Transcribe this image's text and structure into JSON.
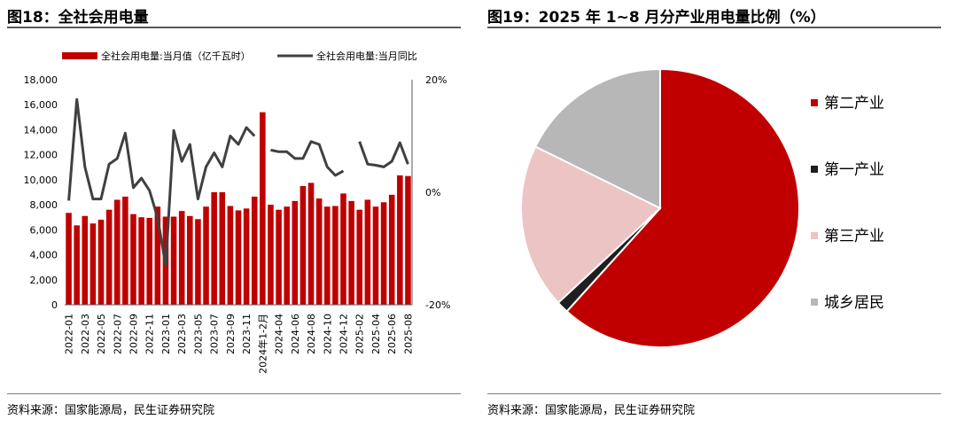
{
  "figures": {
    "left_title": "图18：全社会用电量",
    "right_title": "图19：2025 年 1~8 月分产业用电量比例（%）",
    "left_source": "资料来源：国家能源局，民生证券研究院",
    "right_source": "资料来源：国家能源局，民生证券研究院"
  },
  "chart_data": [
    {
      "type": "bar+line",
      "title": "全社会用电量",
      "colors": {
        "bar": "#c00000",
        "line": "#404040"
      },
      "legend": {
        "placement": "top",
        "bar_label": "全社会用电量:当月值（亿千瓦时）",
        "line_label": "全社会用电量:当月同比"
      },
      "y_left": {
        "ylim": [
          0,
          18000
        ],
        "ticks": [
          "0",
          "2,000",
          "4,000",
          "6,000",
          "8,000",
          "10,000",
          "12,000",
          "14,000",
          "16,000",
          "18,000"
        ]
      },
      "y_right": {
        "ylim": [
          -20,
          20
        ],
        "ticks": [
          "-20%",
          "0%",
          "20%"
        ]
      },
      "x_tick_labels": [
        "2022-01",
        "2022-03",
        "2022-05",
        "2022-07",
        "2022-09",
        "2022-11",
        "2023-01",
        "2023-03",
        "2023-05",
        "2023-07",
        "2023-09",
        "2023-11",
        "2024年1-2月",
        "2024-04",
        "2024-06",
        "2024-08",
        "2024-10",
        "2024-12",
        "2025-02",
        "2025-04",
        "2025-06",
        "2025-08"
      ],
      "series": [
        {
          "name": "全社会用电量:当月值（亿千瓦时）",
          "kind": "bar",
          "values": [
            7350,
            6350,
            7100,
            6500,
            6800,
            7600,
            8400,
            8650,
            7250,
            7000,
            6950,
            7850,
            7050,
            7050,
            7500,
            7100,
            6850,
            7850,
            9000,
            9000,
            7900,
            7550,
            7700,
            8650,
            15400,
            8000,
            7600,
            7850,
            8300,
            9500,
            9750,
            8500,
            7850,
            7900,
            8900,
            8300,
            7600,
            8400,
            7850,
            8200,
            8800,
            10350,
            10300
          ]
        },
        {
          "name": "全社会用电量:当月同比",
          "kind": "line",
          "values": [
            -1.5,
            16.5,
            4.5,
            -1.2,
            -1.2,
            5.0,
            6.0,
            10.5,
            0.8,
            2.5,
            0.3,
            -4.5,
            -13.0,
            11.0,
            5.5,
            8.5,
            -1.2,
            4.5,
            7.0,
            4.5,
            10.0,
            8.5,
            11.5,
            10.0,
            null,
            7.5,
            7.2,
            7.2,
            6.0,
            6.0,
            9.0,
            8.5,
            4.5,
            3.0,
            3.8,
            null,
            9.0,
            5.0,
            4.8,
            4.5,
            5.5,
            8.8,
            5.0
          ]
        }
      ]
    },
    {
      "type": "pie",
      "title": "2025 年 1~8 月分产业用电量比例（%）",
      "legend": {
        "placement": "right"
      },
      "slices": [
        {
          "label": "第二产业",
          "value": 61.7,
          "color": "#c00000"
        },
        {
          "label": "第一产业",
          "value": 1.4,
          "color": "#1f1f1f"
        },
        {
          "label": "第三产业",
          "value": 19.2,
          "color": "#ecc4c4"
        },
        {
          "label": "城乡居民",
          "value": 17.7,
          "color": "#b7b7b7"
        }
      ]
    }
  ]
}
